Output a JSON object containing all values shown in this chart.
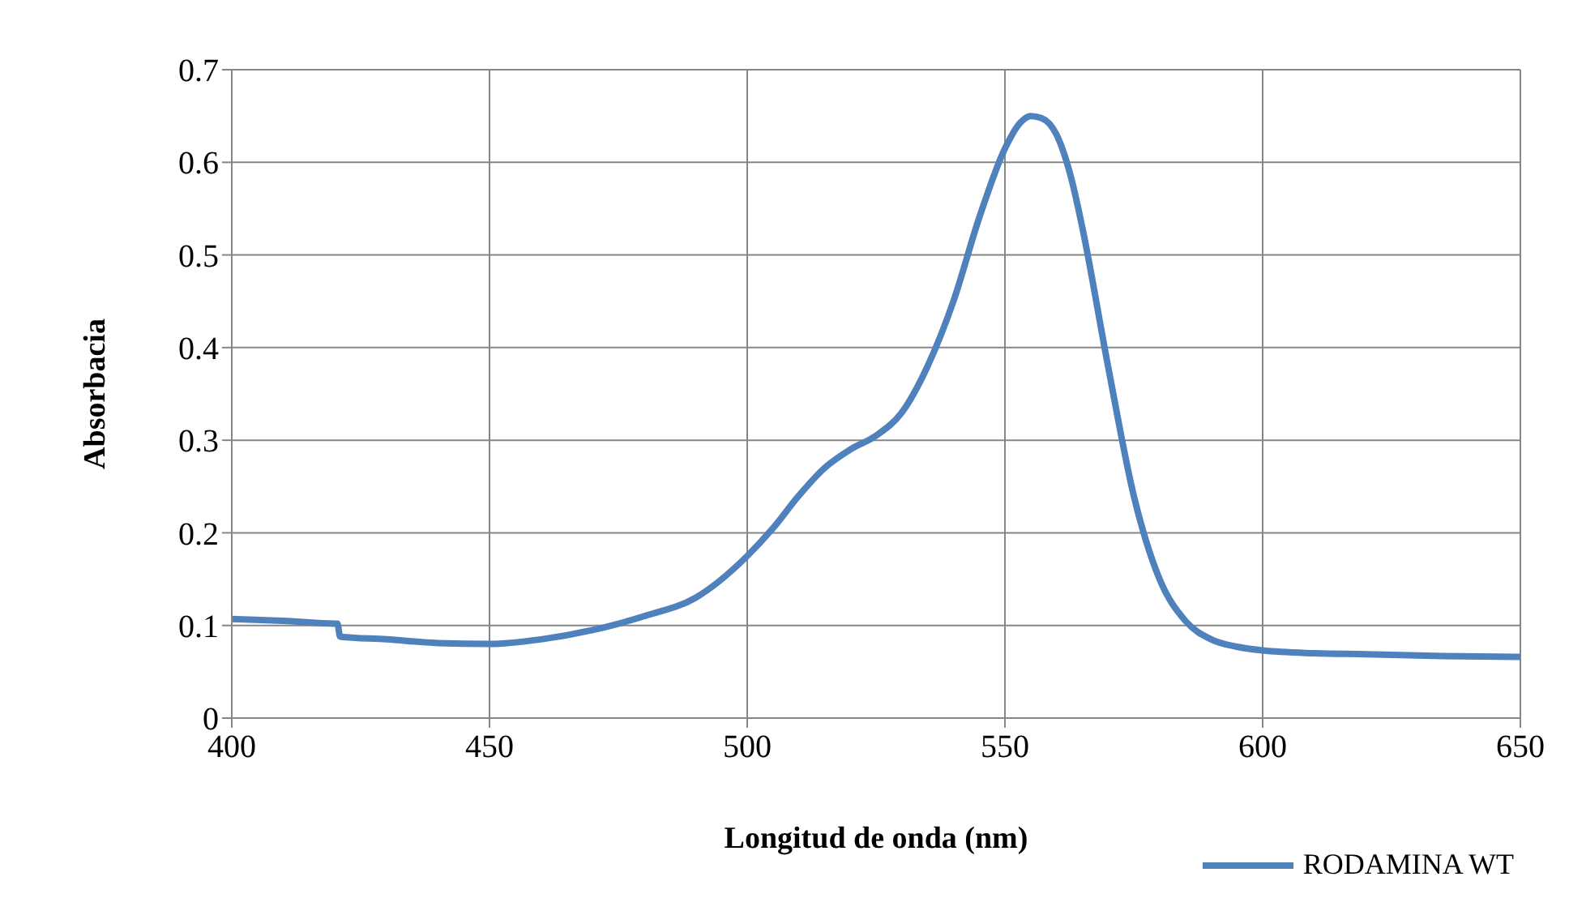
{
  "chart_data": {
    "type": "line",
    "xlabel": "Longitud de onda (nm)",
    "ylabel": "Absorbacia",
    "x": [
      400,
      410,
      420,
      420.5,
      421,
      430,
      440,
      450,
      460,
      470,
      480,
      490,
      500,
      505,
      510,
      515,
      520,
      525,
      530,
      535,
      540,
      545,
      550,
      553,
      555,
      557,
      560,
      563,
      565,
      570,
      575,
      580,
      585,
      590,
      595,
      600,
      610,
      620,
      635,
      650
    ],
    "series": [
      {
        "name": "RODAMINA WT",
        "color": "#4f81bd",
        "values": [
          0.107,
          0.105,
          0.102,
          0.102,
          0.088,
          0.085,
          0.081,
          0.08,
          0.085,
          0.095,
          0.11,
          0.13,
          0.175,
          0.205,
          0.24,
          0.27,
          0.29,
          0.305,
          0.33,
          0.38,
          0.45,
          0.54,
          0.615,
          0.643,
          0.65,
          0.648,
          0.63,
          0.58,
          0.53,
          0.38,
          0.24,
          0.15,
          0.105,
          0.085,
          0.077,
          0.073,
          0.07,
          0.069,
          0.067,
          0.066
        ]
      }
    ],
    "xlim": [
      400,
      650
    ],
    "xticks": [
      400,
      450,
      500,
      550,
      600,
      650
    ],
    "ylim": [
      0,
      0.7
    ],
    "yticks": [
      0,
      0.1,
      0.2,
      0.3,
      0.4,
      0.5,
      0.6,
      0.7
    ],
    "grid": true,
    "legend": "bottom right",
    "marker": "none",
    "line_style": "solid"
  }
}
